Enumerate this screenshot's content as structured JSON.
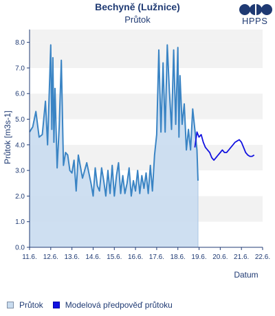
{
  "header": {
    "title": "Bechyně (Lužnice)",
    "subtitle": "Průtok"
  },
  "logo": {
    "text": "HPPS"
  },
  "legend": [
    {
      "label": "Průtok",
      "color": "#c9dcef",
      "border": "#7f8fa5"
    },
    {
      "label": "Modelová předpověď průtoku",
      "color": "#1010e0",
      "border": "#0000aa"
    }
  ],
  "chart_data": {
    "type": "line",
    "title": "Bechyně (Lužnice)",
    "subtitle": "Průtok",
    "xlabel": "Datum",
    "ylabel": "Průtok [m3s-1]",
    "x_ticks": [
      "11.6.",
      "12.6.",
      "13.6.",
      "14.6.",
      "15.6.",
      "16.6.",
      "17.6.",
      "18.6.",
      "19.6.",
      "20.6.",
      "21.6.",
      "22.6."
    ],
    "y_ticks": [
      "0.0",
      "1.0",
      "2.0",
      "3.0",
      "4.0",
      "5.0",
      "6.0",
      "7.0",
      "8.0"
    ],
    "xlim": [
      0,
      11
    ],
    "ylim": [
      0,
      8.5
    ],
    "grid": "horizontal bands",
    "legend_position": "bottom",
    "series": [
      {
        "name": "Průtok",
        "color": "#3a84c4",
        "x": [
          0.0,
          0.15,
          0.3,
          0.45,
          0.6,
          0.75,
          0.85,
          0.95,
          1.0,
          1.05,
          1.1,
          1.15,
          1.2,
          1.3,
          1.4,
          1.5,
          1.6,
          1.7,
          1.8,
          1.9,
          2.0,
          2.1,
          2.2,
          2.3,
          2.5,
          2.7,
          2.9,
          3.0,
          3.1,
          3.2,
          3.3,
          3.4,
          3.5,
          3.6,
          3.7,
          3.8,
          3.9,
          4.0,
          4.1,
          4.2,
          4.3,
          4.4,
          4.5,
          4.6,
          4.7,
          4.8,
          4.9,
          5.0,
          5.1,
          5.2,
          5.3,
          5.4,
          5.5,
          5.6,
          5.7,
          5.8,
          5.9,
          6.0,
          6.1,
          6.2,
          6.3,
          6.4,
          6.5,
          6.6,
          6.7,
          6.8,
          6.9,
          7.0,
          7.05,
          7.1,
          7.15,
          7.2,
          7.3,
          7.4,
          7.5,
          7.6,
          7.7,
          7.8,
          7.9,
          7.95
        ],
        "y": [
          4.5,
          4.7,
          5.3,
          4.3,
          4.4,
          5.7,
          4.0,
          6.6,
          7.9,
          4.6,
          7.4,
          4.1,
          6.2,
          3.1,
          4.7,
          7.3,
          3.2,
          3.7,
          3.6,
          3.0,
          2.9,
          3.4,
          2.2,
          3.6,
          2.7,
          3.3,
          2.5,
          2.0,
          3.1,
          2.4,
          2.2,
          3.1,
          2.6,
          2.0,
          3.0,
          2.1,
          3.2,
          2.0,
          2.8,
          3.3,
          2.1,
          2.8,
          2.1,
          2.5,
          3.1,
          2.0,
          2.6,
          2.2,
          3.0,
          2.1,
          2.8,
          2.3,
          2.9,
          2.1,
          3.2,
          2.2,
          3.6,
          4.4,
          7.7,
          4.5,
          7.2,
          4.5,
          7.9,
          6.1,
          4.6,
          7.7,
          4.8,
          7.8,
          4.3,
          6.7,
          5.7,
          4.8,
          5.6,
          3.8,
          4.6,
          3.8,
          5.4,
          4.6,
          3.8,
          2.6
        ]
      },
      {
        "name": "Modelová předpověď průtoku",
        "color": "#1212e0",
        "x": [
          7.8,
          7.9,
          8.0,
          8.1,
          8.2,
          8.3,
          8.4,
          8.5,
          8.6,
          8.7,
          8.8,
          8.9,
          9.0,
          9.1,
          9.2,
          9.3,
          9.4,
          9.5,
          9.6,
          9.7,
          9.8,
          9.9,
          10.0,
          10.1,
          10.2,
          10.3,
          10.4,
          10.5,
          10.6
        ],
        "y": [
          3.9,
          4.5,
          4.3,
          4.4,
          4.1,
          3.9,
          3.8,
          3.7,
          3.5,
          3.4,
          3.5,
          3.6,
          3.7,
          3.8,
          3.7,
          3.7,
          3.8,
          3.9,
          4.0,
          4.1,
          4.15,
          4.2,
          4.1,
          3.9,
          3.7,
          3.6,
          3.55,
          3.55,
          3.6
        ]
      }
    ]
  }
}
